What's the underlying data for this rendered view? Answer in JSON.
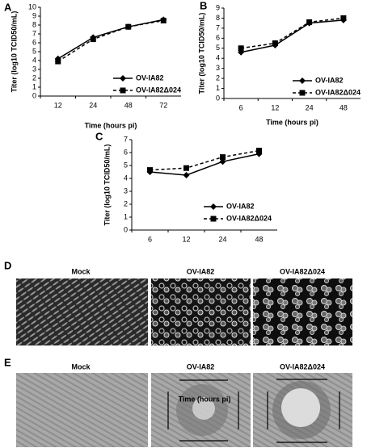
{
  "chart_data": [
    {
      "type": "line",
      "panel": "A",
      "x_label": "Time (hours pi)",
      "y_label": "Titer (log10 TCID50/mL)",
      "categories": [
        "12",
        "24",
        "48",
        "72"
      ],
      "ylim": [
        0,
        10
      ],
      "yticks": [
        0,
        1,
        2,
        3,
        4,
        5,
        6,
        7,
        8,
        9,
        10
      ],
      "series": [
        {
          "name": "OV-IA82",
          "color": "#000000",
          "line_style": "solid",
          "marker": "diamond",
          "values": [
            4.2,
            6.6,
            7.8,
            8.6
          ]
        },
        {
          "name": "OV-IA82Δ024",
          "color": "#000000",
          "line_style": "dashed",
          "marker": "square",
          "values": [
            3.9,
            6.4,
            7.8,
            8.5
          ]
        }
      ]
    },
    {
      "type": "line",
      "panel": "B",
      "x_label": "Time (hours pi)",
      "y_label": "Titer (log10 TCID50/mL)",
      "categories": [
        "6",
        "12",
        "24",
        "48"
      ],
      "ylim": [
        0,
        9
      ],
      "yticks": [
        0,
        1,
        2,
        3,
        4,
        5,
        6,
        7,
        8,
        9
      ],
      "series": [
        {
          "name": "OV-IA82",
          "color": "#000000",
          "line_style": "solid",
          "marker": "diamond",
          "values": [
            4.6,
            5.3,
            7.5,
            7.8
          ]
        },
        {
          "name": "OV-IA82Δ024",
          "color": "#000000",
          "line_style": "dashed",
          "marker": "square",
          "values": [
            5.0,
            5.5,
            7.6,
            8.0
          ]
        }
      ]
    },
    {
      "type": "line",
      "panel": "C",
      "x_label": "Time (hours pi)",
      "y_label": "Titer (log10 TCID50/mL)",
      "categories": [
        "6",
        "12",
        "24",
        "48"
      ],
      "ylim": [
        0,
        7
      ],
      "yticks": [
        0,
        1,
        2,
        3,
        4,
        5,
        6,
        7
      ],
      "series": [
        {
          "name": "OV-IA82",
          "color": "#000000",
          "line_style": "solid",
          "marker": "diamond",
          "values": [
            4.5,
            4.25,
            5.3,
            5.9
          ]
        },
        {
          "name": "OV-IA82Δ024",
          "color": "#000000",
          "line_style": "dashed",
          "marker": "square",
          "values": [
            4.65,
            4.8,
            5.65,
            6.15
          ]
        }
      ]
    }
  ],
  "image_panels": [
    {
      "letter": "D",
      "labels": [
        "Mock",
        "OV-IA82",
        "OV-IA82Δ024"
      ]
    },
    {
      "letter": "E",
      "labels": [
        "Mock",
        "OV-IA82",
        "OV-IA82Δ024"
      ]
    }
  ]
}
